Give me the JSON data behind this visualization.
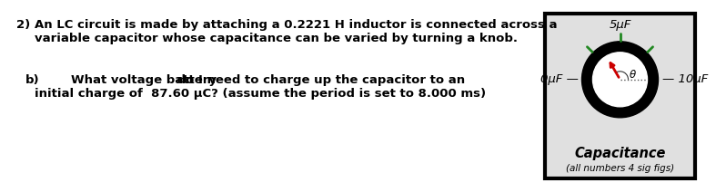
{
  "title_num": "2)",
  "line1": "An LC circuit is made by attaching a 0.2221 H inductor is connected across a",
  "line2": "variable capacitor whose capacitance can be varied by turning a knob.",
  "part_b_label": "b)",
  "part_b_bold": "What voltage battery",
  "part_b_rest": " do I need to charge up the capacitor to an",
  "part_b_line2": "initial charge of  87.60 μC? (assume the period is set to 8.000 ms)",
  "dial_label_top": "5μF",
  "dial_label_left": "0μF —",
  "dial_label_right": "— 10μF",
  "dial_title": "Capacitance",
  "dial_subtitle": "(all numbers 4 sig figs)",
  "dial_bg": "#e0e0e0",
  "needle_color": "#cc0000",
  "tick_color": "#228822",
  "theta_label": "θ",
  "text_color": "#000000",
  "font_size_main": 9.5,
  "font_size_dial_label": 9.5,
  "font_size_dial_title": 10.5,
  "font_size_dial_subtitle": 7.5
}
